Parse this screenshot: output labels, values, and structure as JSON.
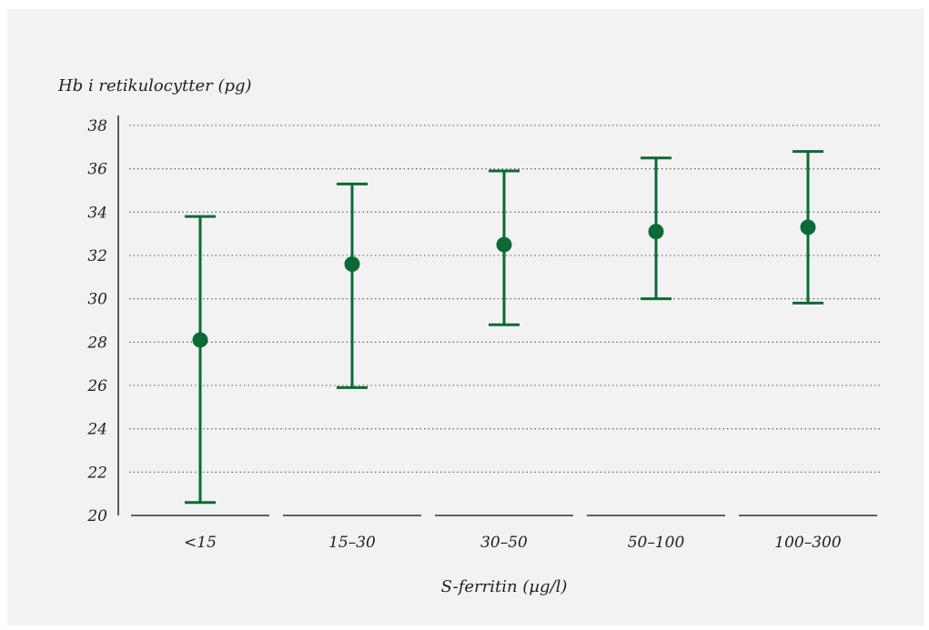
{
  "chart_data": {
    "type": "scatter",
    "subtype": "point-with-error-bars",
    "ylabel": "Hb i retikulocytter (pg)",
    "xlabel": "S-ferritin (µg/l)",
    "ylim": [
      20,
      38
    ],
    "yticks": [
      20,
      22,
      24,
      26,
      28,
      30,
      32,
      34,
      36,
      38
    ],
    "grid": "horizontal-dotted",
    "categories": [
      "<15",
      "15–30",
      "30–50",
      "50–100",
      "100–300"
    ],
    "series": [
      {
        "values": [
          28.1,
          31.6,
          32.5,
          33.1,
          33.3
        ],
        "lower": [
          20.6,
          25.9,
          28.8,
          30.0,
          29.8
        ],
        "upper": [
          33.8,
          35.3,
          35.9,
          36.5,
          36.8
        ]
      }
    ],
    "colors": {
      "marker": "#0b6a35",
      "axis": "#333333",
      "grid": "#555555"
    }
  }
}
